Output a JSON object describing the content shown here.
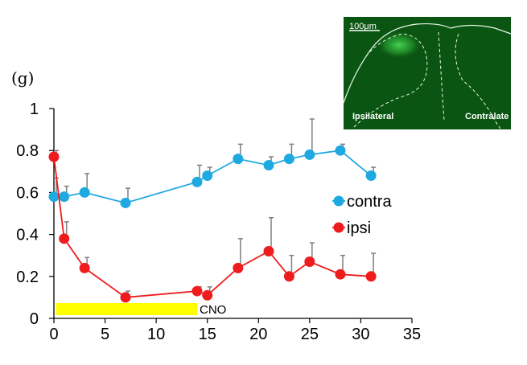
{
  "chart_data": {
    "type": "line",
    "title": "",
    "xlabel": "",
    "ylabel": "(g)",
    "xlim": [
      0,
      35
    ],
    "ylim": [
      0,
      1
    ],
    "x_ticks": [
      "0",
      "5",
      "10",
      "15",
      "20",
      "25",
      "30",
      "35"
    ],
    "y_ticks": [
      "0",
      "0.2",
      "0.4",
      "0.6",
      "0.8",
      "1"
    ],
    "x_tick_values": [
      0,
      5,
      10,
      15,
      20,
      25,
      30,
      35
    ],
    "y_tick_values": [
      0,
      0.2,
      0.4,
      0.6,
      0.8,
      1
    ],
    "grid": false,
    "legend_position": "right",
    "series": [
      {
        "name": "contra",
        "color": "#1fa9e1",
        "x": [
          0,
          1,
          3,
          7,
          14,
          15,
          18,
          21,
          23,
          25,
          28,
          31
        ],
        "y": [
          0.58,
          0.58,
          0.6,
          0.55,
          0.65,
          0.68,
          0.76,
          0.73,
          0.76,
          0.78,
          0.8,
          0.68
        ],
        "error": [
          0.09,
          0.05,
          0.09,
          0.07,
          0.08,
          0.04,
          0.07,
          0.04,
          0.07,
          0.17,
          0.03,
          0.04
        ]
      },
      {
        "name": "ipsi",
        "color": "#ee1c1c",
        "x": [
          0,
          1,
          3,
          7,
          14,
          15,
          18,
          21,
          23,
          25,
          28,
          31
        ],
        "y": [
          0.77,
          0.38,
          0.24,
          0.1,
          0.13,
          0.11,
          0.24,
          0.32,
          0.2,
          0.27,
          0.21,
          0.2
        ],
        "error": [
          0.03,
          0.08,
          0.05,
          0.03,
          0.02,
          0.04,
          0.14,
          0.16,
          0.1,
          0.09,
          0.09,
          0.11
        ]
      }
    ],
    "annotations": [
      {
        "label": "CNO",
        "x_start": 0.2,
        "x_end": 14,
        "color": "#ffff00"
      }
    ],
    "inset": {
      "scale_bar": "100μm",
      "left_label": "Ipsilateral",
      "right_label": "Contralate"
    }
  }
}
